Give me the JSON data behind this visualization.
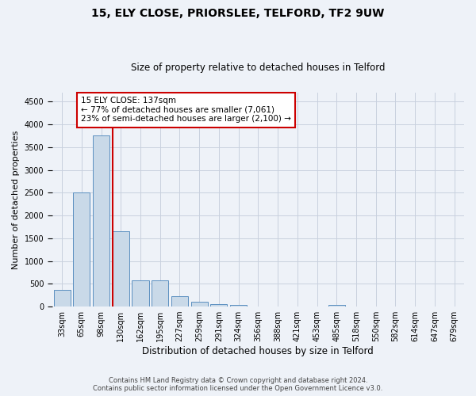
{
  "title": "15, ELY CLOSE, PRIORSLEE, TELFORD, TF2 9UW",
  "subtitle": "Size of property relative to detached houses in Telford",
  "xlabel": "Distribution of detached houses by size in Telford",
  "ylabel": "Number of detached properties",
  "categories": [
    "33sqm",
    "65sqm",
    "98sqm",
    "130sqm",
    "162sqm",
    "195sqm",
    "227sqm",
    "259sqm",
    "291sqm",
    "324sqm",
    "356sqm",
    "388sqm",
    "421sqm",
    "453sqm",
    "485sqm",
    "518sqm",
    "550sqm",
    "582sqm",
    "614sqm",
    "647sqm",
    "679sqm"
  ],
  "values": [
    375,
    2500,
    3750,
    1650,
    575,
    575,
    225,
    110,
    60,
    40,
    0,
    0,
    0,
    0,
    40,
    0,
    0,
    0,
    0,
    0,
    0
  ],
  "bar_color": "#c9d9e8",
  "bar_edge_color": "#5a8fc0",
  "red_line_index": 3,
  "annotation_title": "15 ELY CLOSE: 137sqm",
  "annotation_line1": "← 77% of detached houses are smaller (7,061)",
  "annotation_line2": "23% of semi-detached houses are larger (2,100) →",
  "annotation_box_color": "#ffffff",
  "annotation_box_edge": "#cc0000",
  "red_line_color": "#cc0000",
  "ylim": [
    0,
    4700
  ],
  "yticks": [
    0,
    500,
    1000,
    1500,
    2000,
    2500,
    3000,
    3500,
    4000,
    4500
  ],
  "footer1": "Contains HM Land Registry data © Crown copyright and database right 2024.",
  "footer2": "Contains public sector information licensed under the Open Government Licence v3.0.",
  "background_color": "#eef2f8",
  "grid_color": "#c8d0de",
  "title_fontsize": 10,
  "subtitle_fontsize": 8.5,
  "ylabel_fontsize": 8,
  "xlabel_fontsize": 8.5,
  "tick_fontsize": 7,
  "annotation_fontsize": 7.5,
  "footer_fontsize": 6
}
